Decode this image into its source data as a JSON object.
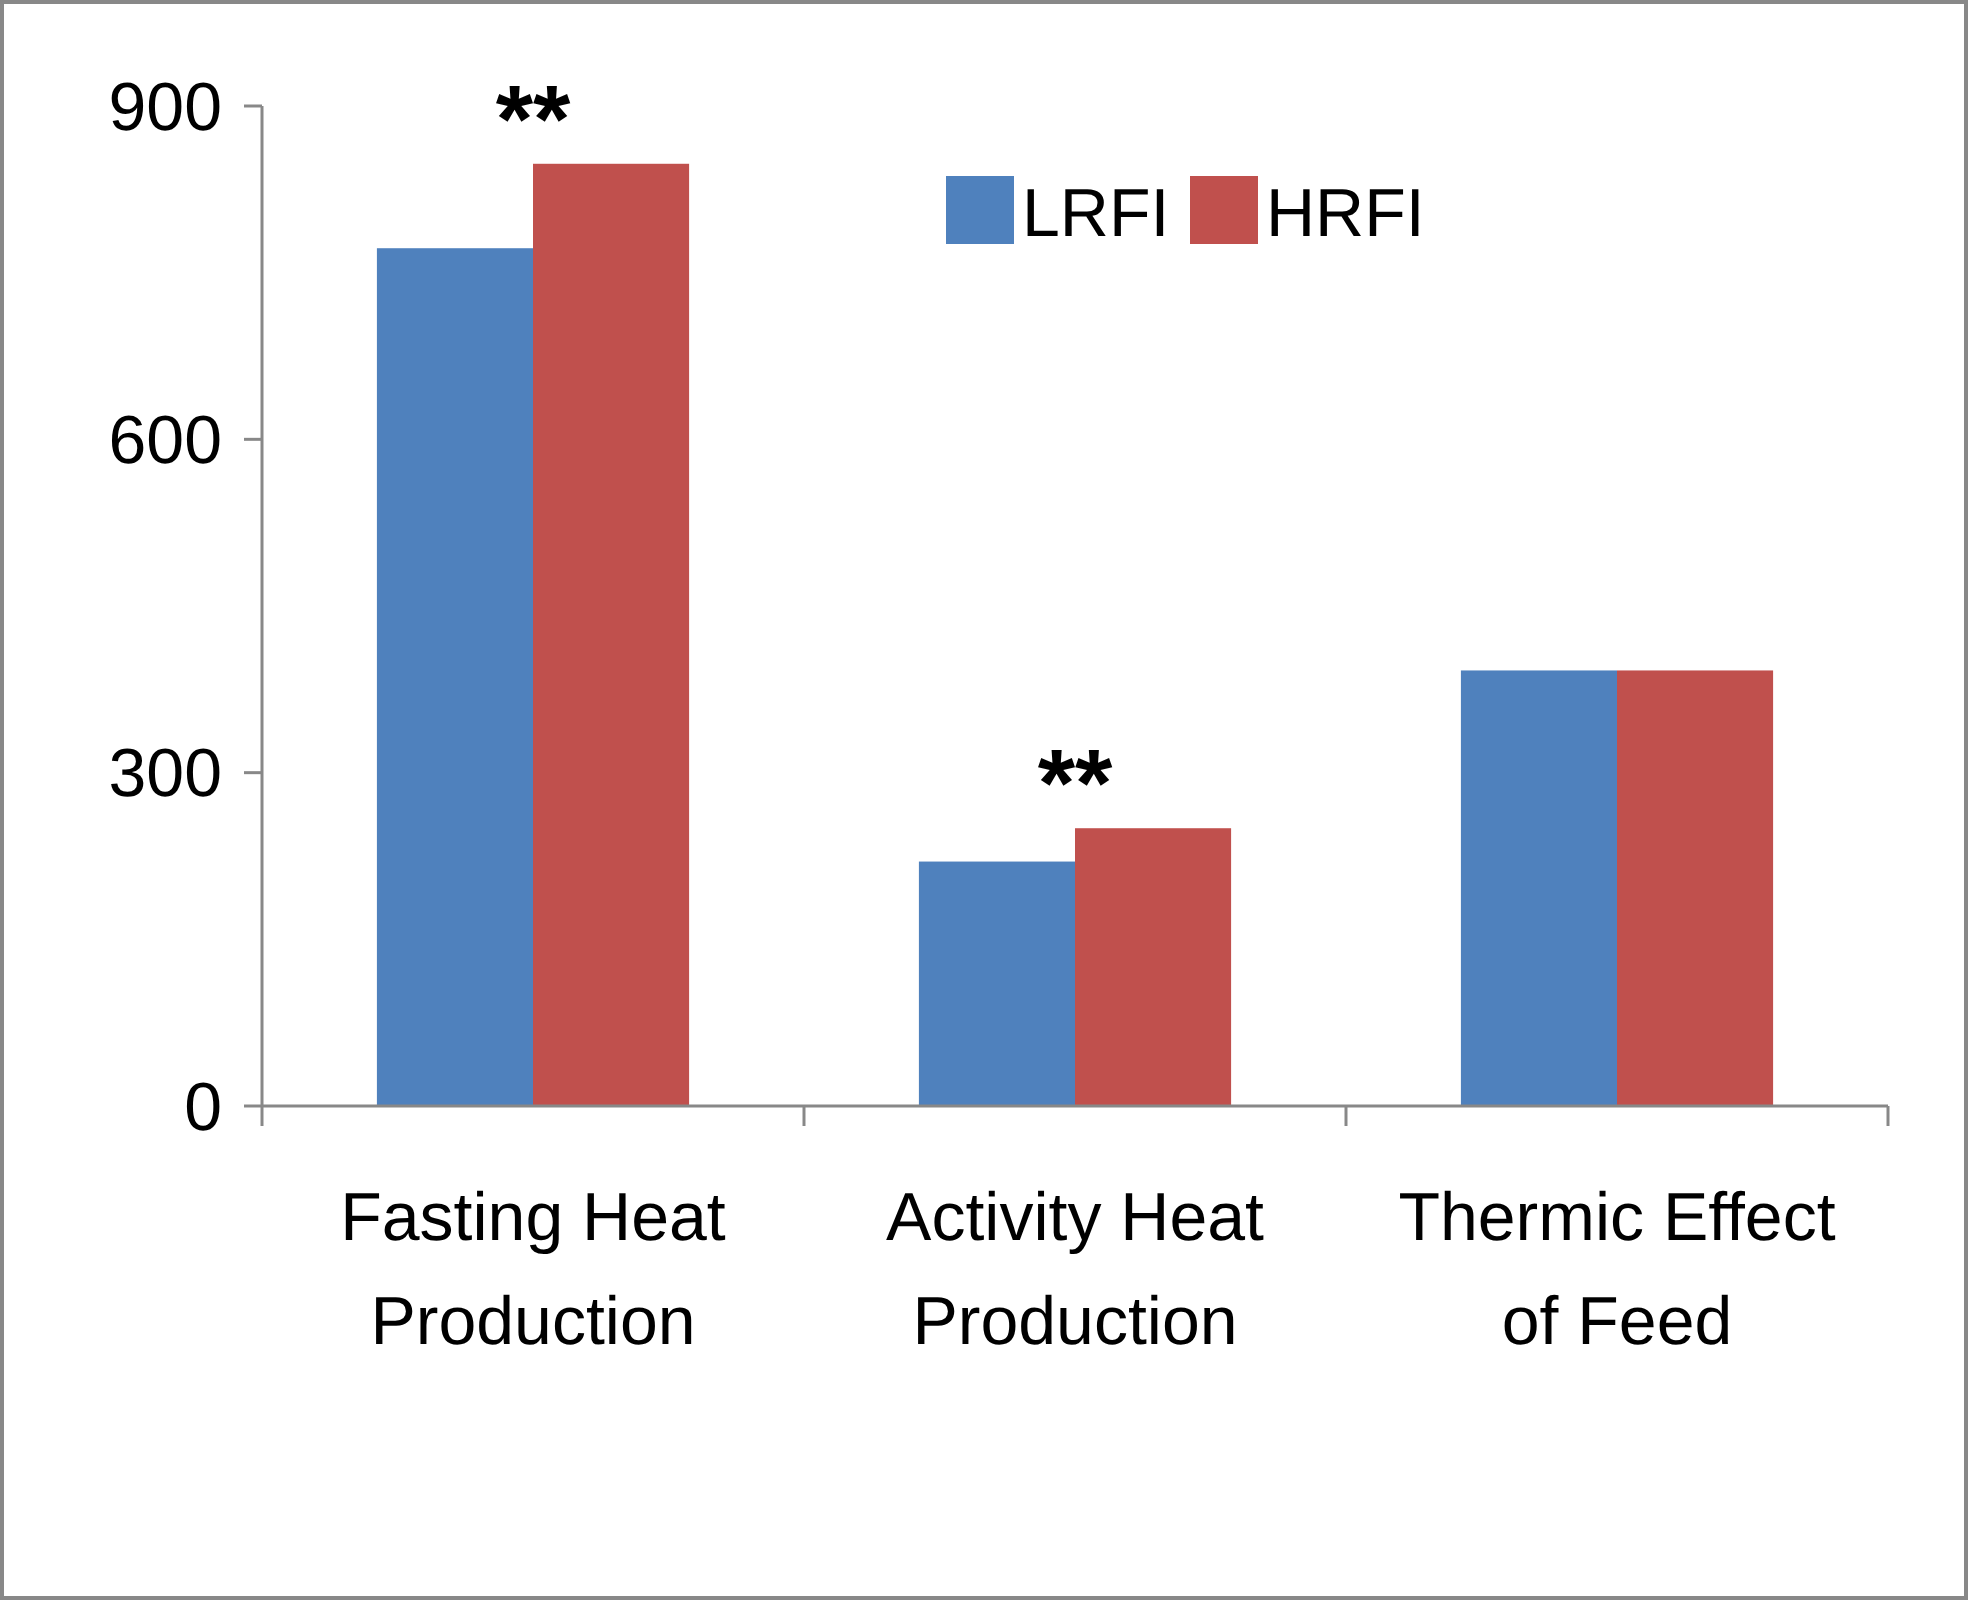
{
  "chart_data": {
    "type": "bar",
    "categories": [
      "Fasting Heat Production",
      "Activity Heat Production",
      "Thermic Effect of Feed"
    ],
    "series": [
      {
        "name": "LRFI",
        "color": "#4f81bd",
        "values": [
          772,
          220,
          392
        ]
      },
      {
        "name": "HRFI",
        "color": "#c0504d",
        "values": [
          848,
          250,
          392
        ]
      }
    ],
    "ylim": [
      0,
      900
    ],
    "yticks": [
      0,
      300,
      600,
      900
    ],
    "grid": false,
    "legend": "top right",
    "annotations": [
      {
        "text": "**",
        "x": "Fasting Heat Production",
        "y": 848
      },
      {
        "text": "**",
        "x": "Activity Heat Production",
        "y": 250
      }
    ]
  }
}
